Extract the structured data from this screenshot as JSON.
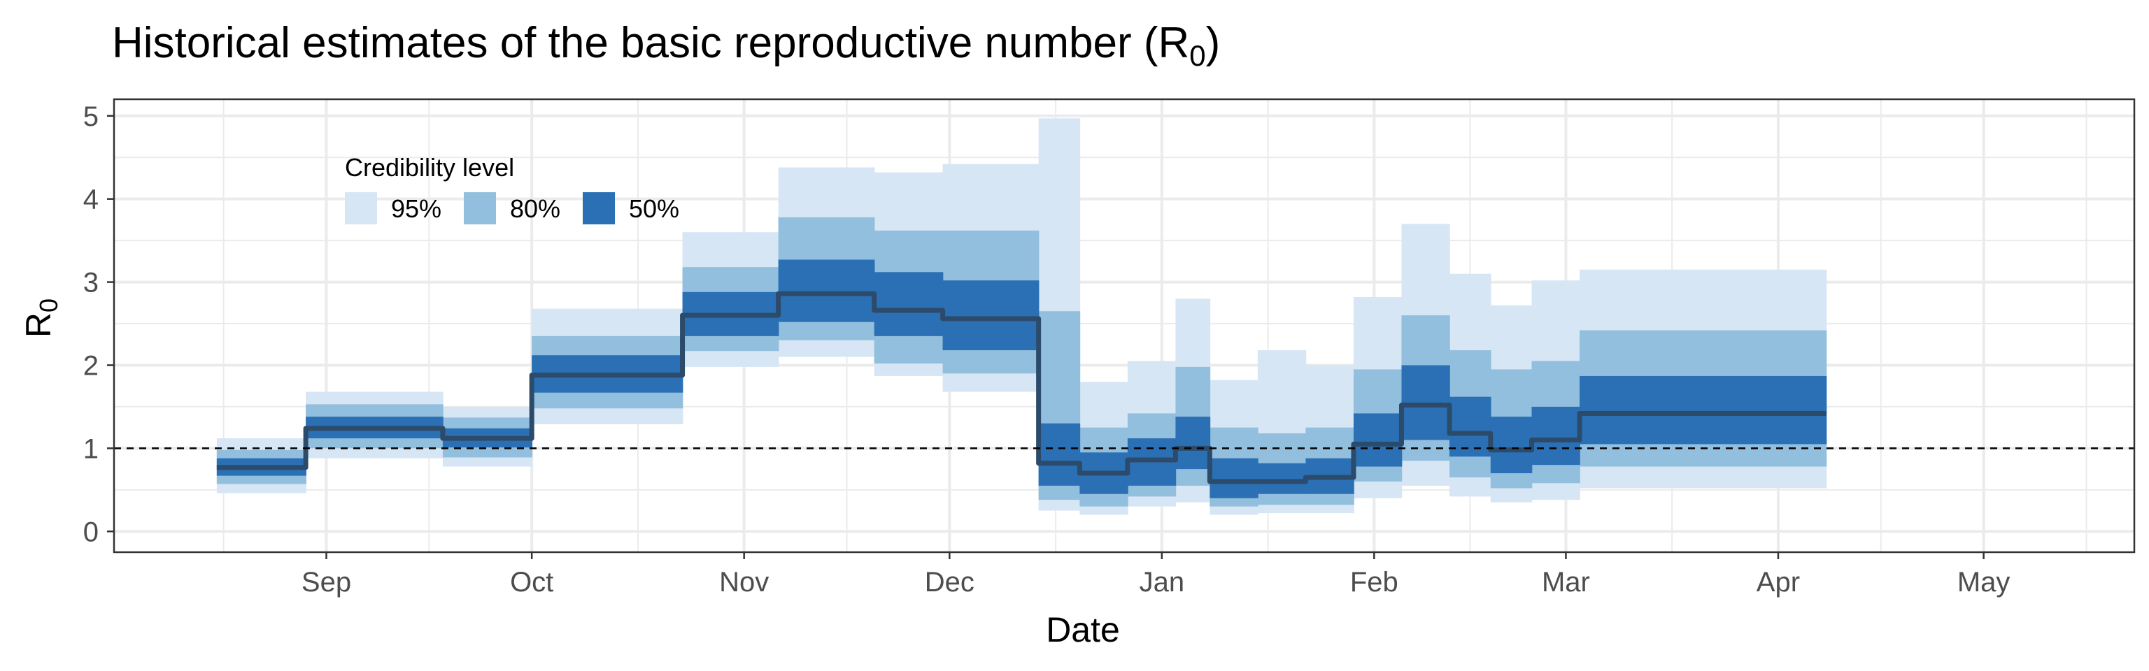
{
  "chart_data": {
    "type": "area",
    "title": "Historical estimates of the basic reproductive number (R",
    "title_subscript": "0",
    "title_suffix": ")",
    "xlabel": "Date",
    "ylabel": "R",
    "ylabel_subscript": "0",
    "ylim": [
      -0.25,
      5.2
    ],
    "y_ticks": [
      0,
      1,
      2,
      3,
      4,
      5
    ],
    "x_ticks": [
      {
        "label": "Sep",
        "day": 31
      },
      {
        "label": "Oct",
        "day": 61
      },
      {
        "label": "Nov",
        "day": 92
      },
      {
        "label": "Dec",
        "day": 122
      },
      {
        "label": "Jan",
        "day": 153
      },
      {
        "label": "Feb",
        "day": 184
      },
      {
        "label": "Mar",
        "day": 212
      },
      {
        "label": "Apr",
        "day": 243
      },
      {
        "label": "May",
        "day": 273
      }
    ],
    "x_range_days": [
      0,
      295
    ],
    "reference_line": {
      "y": 1,
      "style": "dashed"
    },
    "legend": {
      "title": "Credibility level",
      "placement": "top-left",
      "entries": [
        {
          "label": "95%",
          "color": "#d7e6f5"
        },
        {
          "label": "80%",
          "color": "#92bfdd"
        },
        {
          "label": "50%",
          "color": "#2b70b4"
        }
      ]
    },
    "colors": {
      "ci95": "#d7e6f5",
      "ci80": "#92bfdd",
      "ci50": "#2b70b4",
      "median": "#2c4b6b",
      "grid": "#ebebeb"
    },
    "series": [
      {
        "start": 15,
        "end": 28,
        "median": 0.77,
        "ci95": [
          0.46,
          1.12
        ],
        "ci80": [
          0.57,
          0.98
        ],
        "ci50": [
          0.67,
          0.88
        ]
      },
      {
        "start": 28,
        "end": 48,
        "median": 1.24,
        "ci95": [
          0.88,
          1.68
        ],
        "ci80": [
          1.0,
          1.53
        ],
        "ci50": [
          1.12,
          1.38
        ]
      },
      {
        "start": 48,
        "end": 61,
        "median": 1.12,
        "ci95": [
          0.78,
          1.5
        ],
        "ci80": [
          0.89,
          1.37
        ],
        "ci50": [
          1.01,
          1.24
        ]
      },
      {
        "start": 61,
        "end": 83,
        "median": 1.88,
        "ci95": [
          1.29,
          2.68
        ],
        "ci80": [
          1.48,
          2.35
        ],
        "ci50": [
          1.67,
          2.12
        ]
      },
      {
        "start": 83,
        "end": 97,
        "median": 2.6,
        "ci95": [
          1.98,
          3.6
        ],
        "ci80": [
          2.17,
          3.18
        ],
        "ci50": [
          2.35,
          2.88
        ]
      },
      {
        "start": 97,
        "end": 111,
        "median": 2.86,
        "ci95": [
          2.1,
          4.38
        ],
        "ci80": [
          2.3,
          3.78
        ],
        "ci50": [
          2.52,
          3.27
        ]
      },
      {
        "start": 111,
        "end": 121,
        "median": 2.66,
        "ci95": [
          1.87,
          4.32
        ],
        "ci80": [
          2.02,
          3.62
        ],
        "ci50": [
          2.35,
          3.12
        ]
      },
      {
        "start": 121,
        "end": 135,
        "median": 2.56,
        "ci95": [
          1.68,
          4.42
        ],
        "ci80": [
          1.9,
          3.62
        ],
        "ci50": [
          2.18,
          3.02
        ]
      },
      {
        "start": 135,
        "end": 141,
        "median": 0.82,
        "ci95": [
          0.25,
          4.97
        ],
        "ci80": [
          0.38,
          2.65
        ],
        "ci50": [
          0.55,
          1.3
        ]
      },
      {
        "start": 141,
        "end": 148,
        "median": 0.7,
        "ci95": [
          0.2,
          1.8
        ],
        "ci80": [
          0.3,
          1.25
        ],
        "ci50": [
          0.45,
          0.95
        ]
      },
      {
        "start": 148,
        "end": 155,
        "median": 0.86,
        "ci95": [
          0.3,
          2.05
        ],
        "ci80": [
          0.42,
          1.42
        ],
        "ci50": [
          0.55,
          1.12
        ]
      },
      {
        "start": 155,
        "end": 160,
        "median": 1.0,
        "ci95": [
          0.35,
          2.8
        ],
        "ci80": [
          0.55,
          1.98
        ],
        "ci50": [
          0.75,
          1.38
        ]
      },
      {
        "start": 160,
        "end": 167,
        "median": 0.6,
        "ci95": [
          0.2,
          1.82
        ],
        "ci80": [
          0.3,
          1.25
        ],
        "ci50": [
          0.4,
          0.88
        ]
      },
      {
        "start": 167,
        "end": 174,
        "median": 0.6,
        "ci95": [
          0.22,
          2.18
        ],
        "ci80": [
          0.32,
          1.18
        ],
        "ci50": [
          0.45,
          0.82
        ]
      },
      {
        "start": 174,
        "end": 181,
        "median": 0.65,
        "ci95": [
          0.22,
          2.0
        ],
        "ci80": [
          0.32,
          1.25
        ],
        "ci50": [
          0.45,
          0.88
        ]
      },
      {
        "start": 181,
        "end": 188,
        "median": 1.05,
        "ci95": [
          0.4,
          2.82
        ],
        "ci80": [
          0.6,
          1.95
        ],
        "ci50": [
          0.78,
          1.42
        ]
      },
      {
        "start": 188,
        "end": 195,
        "median": 1.52,
        "ci95": [
          0.55,
          3.7
        ],
        "ci80": [
          0.85,
          2.6
        ],
        "ci50": [
          1.1,
          2.0
        ]
      },
      {
        "start": 195,
        "end": 201,
        "median": 1.18,
        "ci95": [
          0.42,
          3.1
        ],
        "ci80": [
          0.65,
          2.18
        ],
        "ci50": [
          0.9,
          1.62
        ]
      },
      {
        "start": 201,
        "end": 207,
        "median": 0.98,
        "ci95": [
          0.35,
          2.72
        ],
        "ci80": [
          0.52,
          1.95
        ],
        "ci50": [
          0.7,
          1.38
        ]
      },
      {
        "start": 207,
        "end": 214,
        "median": 1.1,
        "ci95": [
          0.38,
          3.02
        ],
        "ci80": [
          0.58,
          2.05
        ],
        "ci50": [
          0.8,
          1.5
        ]
      },
      {
        "start": 214,
        "end": 250,
        "median": 1.42,
        "ci95": [
          0.52,
          3.15
        ],
        "ci80": [
          0.78,
          2.42
        ],
        "ci50": [
          1.05,
          1.87
        ]
      }
    ]
  }
}
